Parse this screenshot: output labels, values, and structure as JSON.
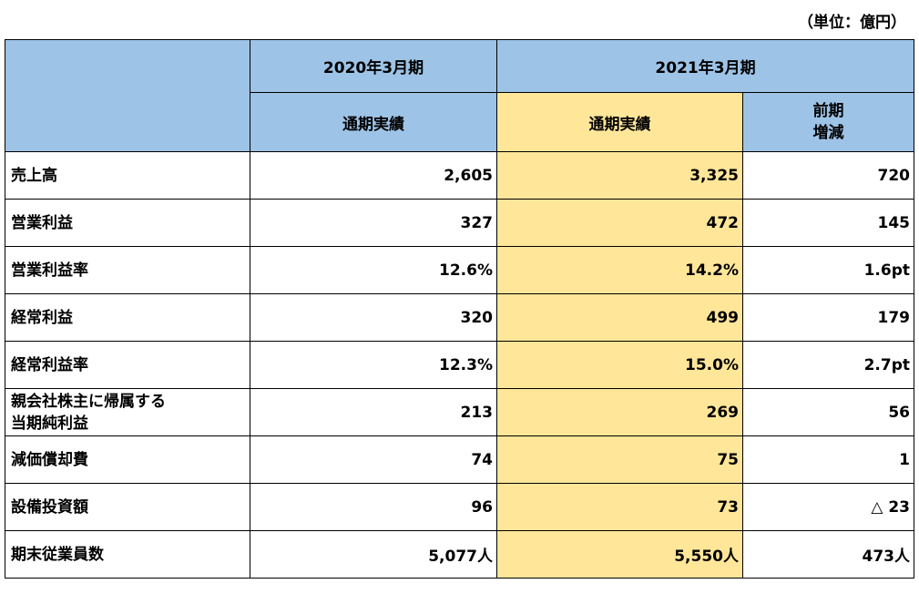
{
  "unit_note": "（単位：億円）",
  "header": {
    "period_2020": "2020年3月期",
    "period_2021": "2021年3月期",
    "col_2020_actual": "通期実績",
    "col_2021_actual": "通期実績",
    "col_yoy_line1": "前期",
    "col_yoy_line2": "増減"
  },
  "rows": [
    {
      "label": "売上高",
      "label2": "",
      "v2020": "2,605",
      "v2021": "3,325",
      "diff": "720"
    },
    {
      "label": "営業利益",
      "label2": "",
      "v2020": "327",
      "v2021": "472",
      "diff": "145"
    },
    {
      "label": "営業利益率",
      "label2": "",
      "v2020": "12.6%",
      "v2021": "14.2%",
      "diff": "1.6pt"
    },
    {
      "label": "経常利益",
      "label2": "",
      "v2020": "320",
      "v2021": "499",
      "diff": "179"
    },
    {
      "label": "経常利益率",
      "label2": "",
      "v2020": "12.3%",
      "v2021": "15.0%",
      "diff": "2.7pt"
    },
    {
      "label": "親会社株主に帰属する",
      "label2": "当期純利益",
      "v2020": "213",
      "v2021": "269",
      "diff": "56"
    },
    {
      "label": "減価償却費",
      "label2": "",
      "v2020": "74",
      "v2021": "75",
      "diff": "1"
    },
    {
      "label": "設備投資額",
      "label2": "",
      "v2020": "96",
      "v2021": "73",
      "diff": "△ 23"
    },
    {
      "label": "期末従業員数",
      "label2": "",
      "v2020": "5,077人",
      "v2021": "5,550人",
      "diff": "473人"
    }
  ],
  "colors": {
    "header_blue": "#9dc3e6",
    "highlight_yellow": "#ffe699"
  }
}
